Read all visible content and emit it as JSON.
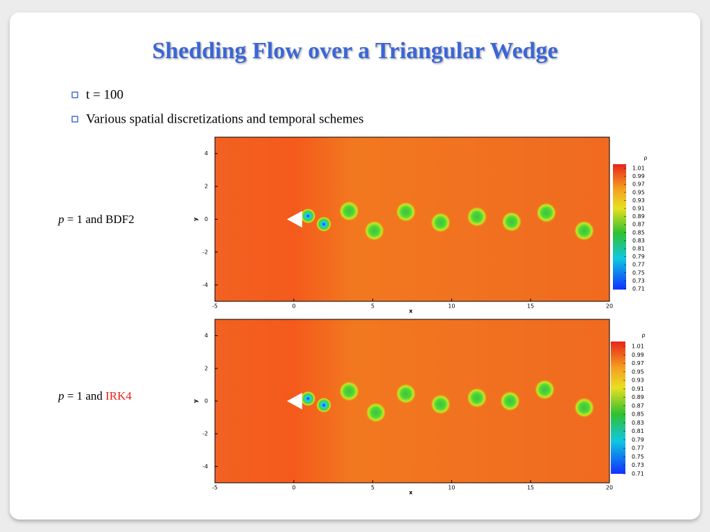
{
  "title": "Shedding Flow over a Triangular Wedge",
  "bullets": [
    "t = 100",
    "Various spatial discretizations and temporal schemes"
  ],
  "plot": {
    "xlabel": "x",
    "ylabel": "y",
    "xlim": [
      -5,
      20
    ],
    "ylim": [
      -5,
      5
    ],
    "xticks": [
      -5,
      0,
      5,
      10,
      15,
      20
    ],
    "yticks": [
      -4,
      -2,
      0,
      2,
      4
    ],
    "colorbar_title": "ρ",
    "colorbar_ticks": [
      1.01,
      0.99,
      0.97,
      0.95,
      0.93,
      0.91,
      0.89,
      0.87,
      0.85,
      0.83,
      0.81,
      0.79,
      0.77,
      0.75,
      0.73,
      0.71
    ]
  },
  "panels": [
    {
      "var": "p",
      "text": "= 1 and",
      "scheme": "BDF2",
      "scheme_color": "#000000"
    },
    {
      "var": "p",
      "text": "= 1 and",
      "scheme": "IRK4",
      "scheme_color": "#e8221a"
    }
  ]
}
